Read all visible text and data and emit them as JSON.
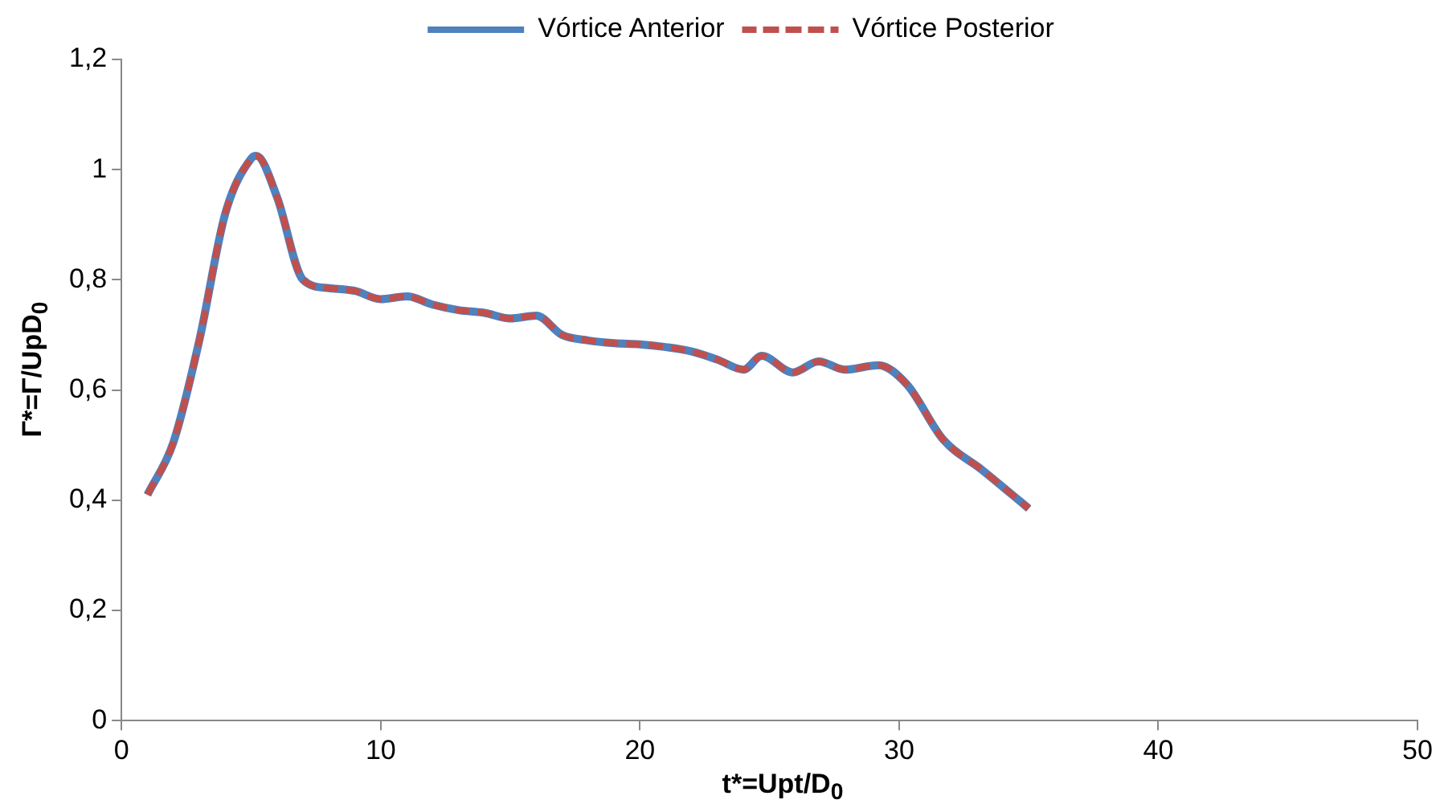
{
  "chart_data": {
    "type": "line",
    "xlabel": "t*=Upt/D$_{0}$",
    "ylabel": "Γ*=Γ/UpD$_{0}$",
    "x": [
      1,
      2,
      3,
      4,
      5,
      5.2,
      6,
      7,
      8,
      9,
      10,
      11,
      12,
      13,
      14,
      15,
      16,
      17,
      18,
      19,
      20,
      21,
      22,
      23,
      24,
      24.7,
      25.9,
      26.9,
      27.9,
      29.2,
      30.3,
      31.7,
      33.2,
      35
    ],
    "series": [
      {
        "name": "Vórtice Anterior",
        "color": "#4f81bd",
        "line_style": "solid",
        "values": [
          0.41,
          0.505,
          0.69,
          0.92,
          1.02,
          1.025,
          0.95,
          0.8,
          0.785,
          0.78,
          0.765,
          0.77,
          0.755,
          0.745,
          0.74,
          0.73,
          0.735,
          0.7,
          0.69,
          0.685,
          0.683,
          0.678,
          0.67,
          0.655,
          0.637,
          0.662,
          0.632,
          0.652,
          0.637,
          0.645,
          0.61,
          0.51,
          0.455,
          0.385
        ]
      },
      {
        "name": "Vórtice Posterior",
        "color": "#c0504d",
        "line_style": "dashed",
        "values": [
          0.41,
          0.505,
          0.69,
          0.92,
          1.02,
          1.025,
          0.95,
          0.8,
          0.785,
          0.78,
          0.765,
          0.77,
          0.755,
          0.745,
          0.74,
          0.73,
          0.735,
          0.7,
          0.69,
          0.685,
          0.683,
          0.678,
          0.67,
          0.655,
          0.637,
          0.662,
          0.632,
          0.652,
          0.637,
          0.645,
          0.61,
          0.51,
          0.455,
          0.385
        ]
      }
    ],
    "xlim": [
      0,
      50
    ],
    "xticks": [
      0,
      10,
      20,
      30,
      40,
      50
    ],
    "ylim": [
      0,
      1.2
    ],
    "yticks": [
      0,
      {
        "value": 0.2,
        "label": "0,2"
      },
      {
        "value": 0.4,
        "label": "0,4"
      },
      {
        "value": 0.6,
        "label": "0,6"
      },
      {
        "value": 0.8,
        "label": "0,8"
      },
      1,
      {
        "value": 1.2,
        "label": "1,2"
      }
    ],
    "grid": false,
    "legend": "top",
    "marker": "none"
  }
}
